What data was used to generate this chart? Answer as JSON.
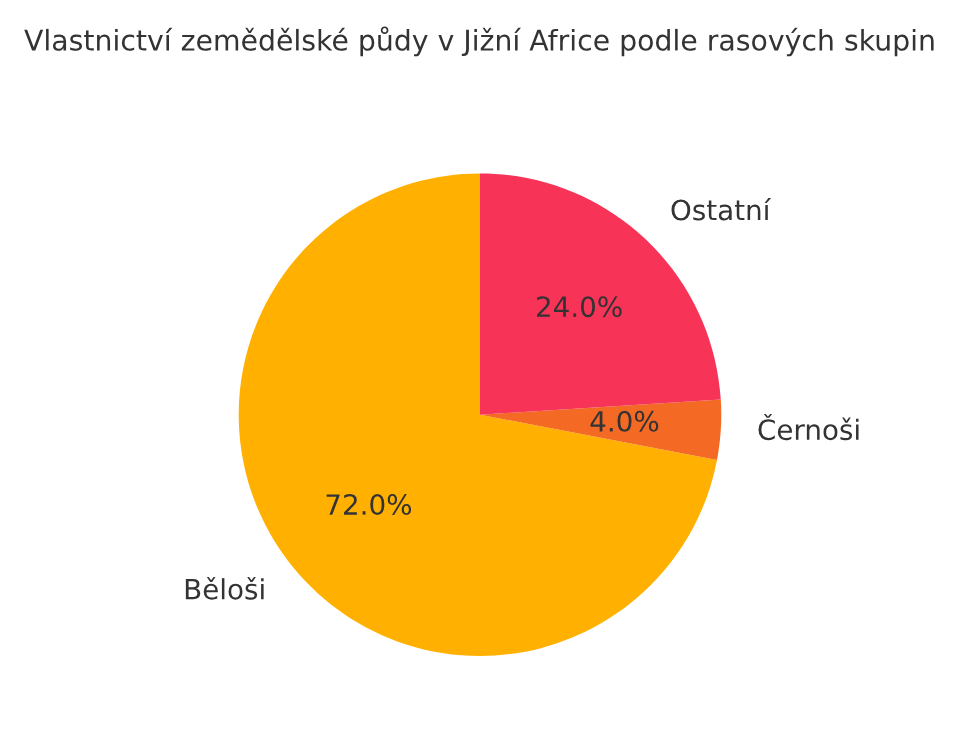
{
  "chart_data": {
    "type": "pie",
    "title": "Vlastnictví zemědělské půdy v Jižní Africe podle rasových skupin",
    "categories": [
      "Běloši",
      "Černoši",
      "Ostatní"
    ],
    "values": [
      72,
      4,
      24
    ],
    "colors": [
      "#ffb000",
      "#f46a25",
      "#f83358"
    ],
    "value_labels": [
      "72.0%",
      "4.0%",
      "24.0%"
    ]
  }
}
